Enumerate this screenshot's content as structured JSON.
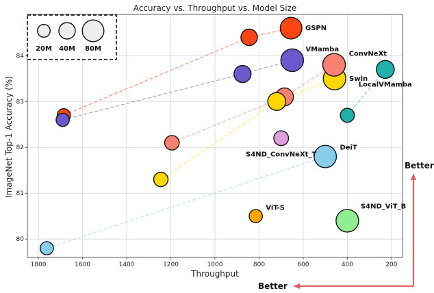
{
  "chart_data": {
    "type": "scatter",
    "title": "Accuracy vs. Throughput vs. Model Size",
    "xlabel": "Throughput",
    "ylabel": "ImageNet Top-1 Accuracy (%)",
    "xlim": [
      1850,
      150
    ],
    "ylim": [
      79.6,
      84.9
    ],
    "x_inverted": true,
    "xticks": [
      1800,
      1600,
      1400,
      1200,
      1000,
      800,
      600,
      400,
      200
    ],
    "yticks": [
      80,
      81,
      82,
      83,
      84
    ],
    "grid": true,
    "size_legend": {
      "location": "top-left",
      "entries": [
        {
          "label": "20M",
          "params_m": 20
        },
        {
          "label": "40M",
          "params_m": 40
        },
        {
          "label": "80M",
          "params_m": 80
        }
      ]
    },
    "better_annotations": {
      "vertical": "Better",
      "horizontal": "Better",
      "color": "#e06060"
    },
    "series": [
      {
        "name": "GSPN",
        "color": "#ff4513",
        "points": [
          {
            "x": 1685,
            "y": 82.7,
            "params_m": 22
          },
          {
            "x": 845,
            "y": 84.4,
            "params_m": 40
          },
          {
            "x": 655,
            "y": 84.6,
            "params_m": 80
          }
        ]
      },
      {
        "name": "VMamba",
        "color": "#6a5acd",
        "points": [
          {
            "x": 1690,
            "y": 82.6,
            "params_m": 22
          },
          {
            "x": 875,
            "y": 83.6,
            "params_m": 44
          },
          {
            "x": 650,
            "y": 83.9,
            "params_m": 89
          }
        ]
      },
      {
        "name": "ConvNeXt",
        "color": "#fa8072",
        "points": [
          {
            "x": 1195,
            "y": 82.1,
            "params_m": 29
          },
          {
            "x": 685,
            "y": 83.1,
            "params_m": 50
          },
          {
            "x": 460,
            "y": 83.8,
            "params_m": 89
          }
        ]
      },
      {
        "name": "Swin",
        "color": "#ffd700",
        "points": [
          {
            "x": 1245,
            "y": 81.3,
            "params_m": 28
          },
          {
            "x": 720,
            "y": 83.0,
            "params_m": 50
          },
          {
            "x": 458,
            "y": 83.5,
            "params_m": 88
          }
        ]
      },
      {
        "name": "LocalVMamba",
        "color": "#20b2aa",
        "points": [
          {
            "x": 400,
            "y": 82.7,
            "params_m": 26
          },
          {
            "x": 228,
            "y": 83.7,
            "params_m": 50
          }
        ]
      },
      {
        "name": "DeiT",
        "color": "#87ceeb",
        "points": [
          {
            "x": 1762,
            "y": 79.8,
            "params_m": 22
          },
          {
            "x": 500,
            "y": 81.8,
            "params_m": 86
          }
        ]
      },
      {
        "name": "S4ND_ConvNeXt_T",
        "color": "#dda0dd",
        "points": [
          {
            "x": 700,
            "y": 82.2,
            "params_m": 30
          }
        ]
      },
      {
        "name": "ViT-S",
        "color": "#ffa500",
        "points": [
          {
            "x": 815,
            "y": 80.5,
            "params_m": 22
          }
        ]
      },
      {
        "name": "S4ND_ViT_B",
        "color": "#90ee90",
        "points": [
          {
            "x": 400,
            "y": 80.4,
            "params_m": 89
          }
        ]
      }
    ]
  }
}
